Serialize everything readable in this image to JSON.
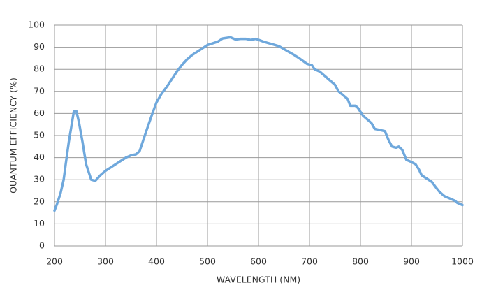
{
  "chart_data": {
    "type": "line",
    "x_label": "WAVELENGTH (NM)",
    "y_label": "QUANTUM EFFICIENCY (%)",
    "x": [
      200,
      205,
      212,
      218,
      222,
      228,
      233,
      238,
      243,
      248,
      255,
      262,
      272,
      280,
      290,
      300,
      320,
      340,
      350,
      360,
      367,
      380,
      392,
      400,
      410,
      420,
      430,
      440,
      450,
      460,
      470,
      480,
      490,
      500,
      520,
      530,
      545,
      555,
      565,
      575,
      585,
      595,
      610,
      625,
      640,
      655,
      670,
      680,
      695,
      705,
      710,
      720,
      730,
      740,
      750,
      757,
      765,
      775,
      780,
      790,
      795,
      805,
      815,
      822,
      828,
      838,
      848,
      855,
      862,
      870,
      875,
      882,
      890,
      900,
      908,
      915,
      920,
      930,
      940,
      948,
      955,
      965,
      975,
      985,
      990,
      1000
    ],
    "series": [
      {
        "color": "#6fa8dc",
        "values": [
          16,
          19,
          24,
          30,
          37,
          47,
          54,
          61,
          61,
          56,
          47,
          37,
          30,
          29.5,
          32,
          34,
          37,
          40,
          41,
          41.5,
          43,
          52,
          60,
          65,
          69,
          72,
          75.5,
          79,
          82,
          84.5,
          86.5,
          88,
          89.5,
          91,
          92.5,
          94,
          94.5,
          93.5,
          93.8,
          93.8,
          93.3,
          93.8,
          92.5,
          91.5,
          90.5,
          88.5,
          86.5,
          85,
          82.5,
          81.8,
          80,
          79,
          77,
          75,
          73,
          70,
          68.5,
          66.5,
          63.5,
          63.5,
          62.5,
          59,
          57,
          55.5,
          53,
          52.5,
          52,
          48,
          45,
          44.5,
          45,
          43.5,
          39,
          38,
          37,
          34.5,
          32,
          30.5,
          29,
          26.5,
          24.5,
          22.5,
          21.5,
          20.5,
          19.5,
          18.5
        ]
      }
    ],
    "xlim": [
      200,
      1000
    ],
    "ylim": [
      0,
      100
    ],
    "xticks": [
      200,
      300,
      400,
      500,
      600,
      700,
      800,
      900,
      1000
    ],
    "yticks": [
      0,
      10,
      20,
      30,
      40,
      50,
      60,
      70,
      80,
      90,
      100
    ],
    "grid": true
  }
}
